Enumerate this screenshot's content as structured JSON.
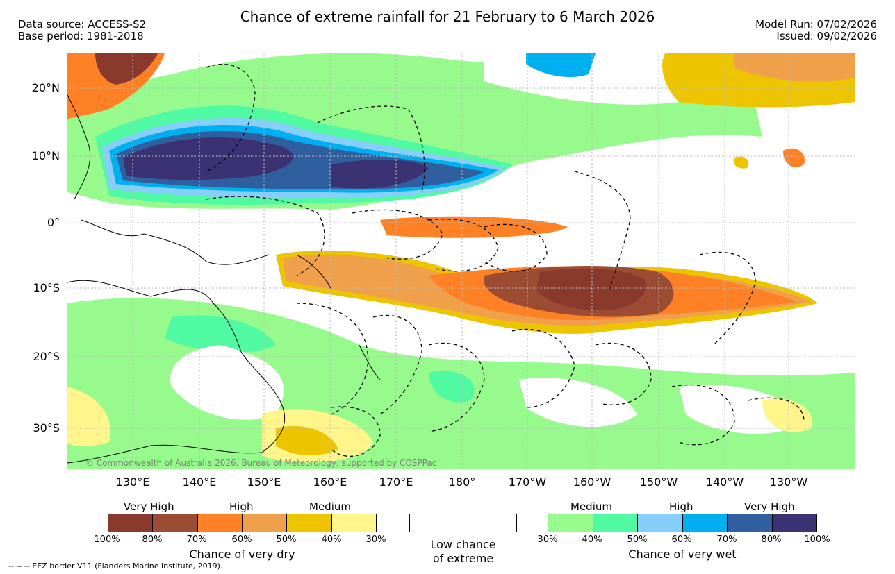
{
  "header": {
    "title": "Chance of extreme rainfall for 21 February to 6 March 2026",
    "data_source": "Data source: ACCESS-S2",
    "base_period": "Base period: 1981-2018",
    "model_run": "Model Run: 07/02/2026",
    "issued": "Issued: 09/02/2026"
  },
  "axes": {
    "lat_labels": [
      "20°N",
      "10°N",
      "0°",
      "10°S",
      "20°S",
      "30°S"
    ],
    "lon_labels": [
      "130°E",
      "140°E",
      "150°E",
      "160°E",
      "170°E",
      "180°",
      "170°W",
      "160°W",
      "150°W",
      "140°W",
      "130°W"
    ]
  },
  "map": {
    "copyright": "© Commonwealth of Australia 2026, Bureau of Meteorology, supported by COSPPac"
  },
  "legend": {
    "dry": {
      "categories": [
        "Very High",
        "High",
        "Medium"
      ],
      "ticks": [
        "100%",
        "80%",
        "70%",
        "60%",
        "50%",
        "40%",
        "30%"
      ],
      "colors": [
        "#8a3a2c",
        "#9b4c33",
        "#ff8126",
        "#f0a04a",
        "#ecc500",
        "#fff58a"
      ],
      "title": "Chance of very dry"
    },
    "low": {
      "line1": "Low chance",
      "line2": "of extreme"
    },
    "wet": {
      "categories": [
        "Medium",
        "High",
        "Very High"
      ],
      "ticks": [
        "30%",
        "40%",
        "50%",
        "60%",
        "70%",
        "80%",
        "100%"
      ],
      "colors": [
        "#96fa8c",
        "#4ffaa2",
        "#87cefa",
        "#00aff0",
        "#305fa0",
        "#3a3273"
      ],
      "title": "Chance of very wet"
    },
    "eez_note": "-- -- -- EEZ border V11 (Flanders Marine Institute, 2019)."
  }
}
